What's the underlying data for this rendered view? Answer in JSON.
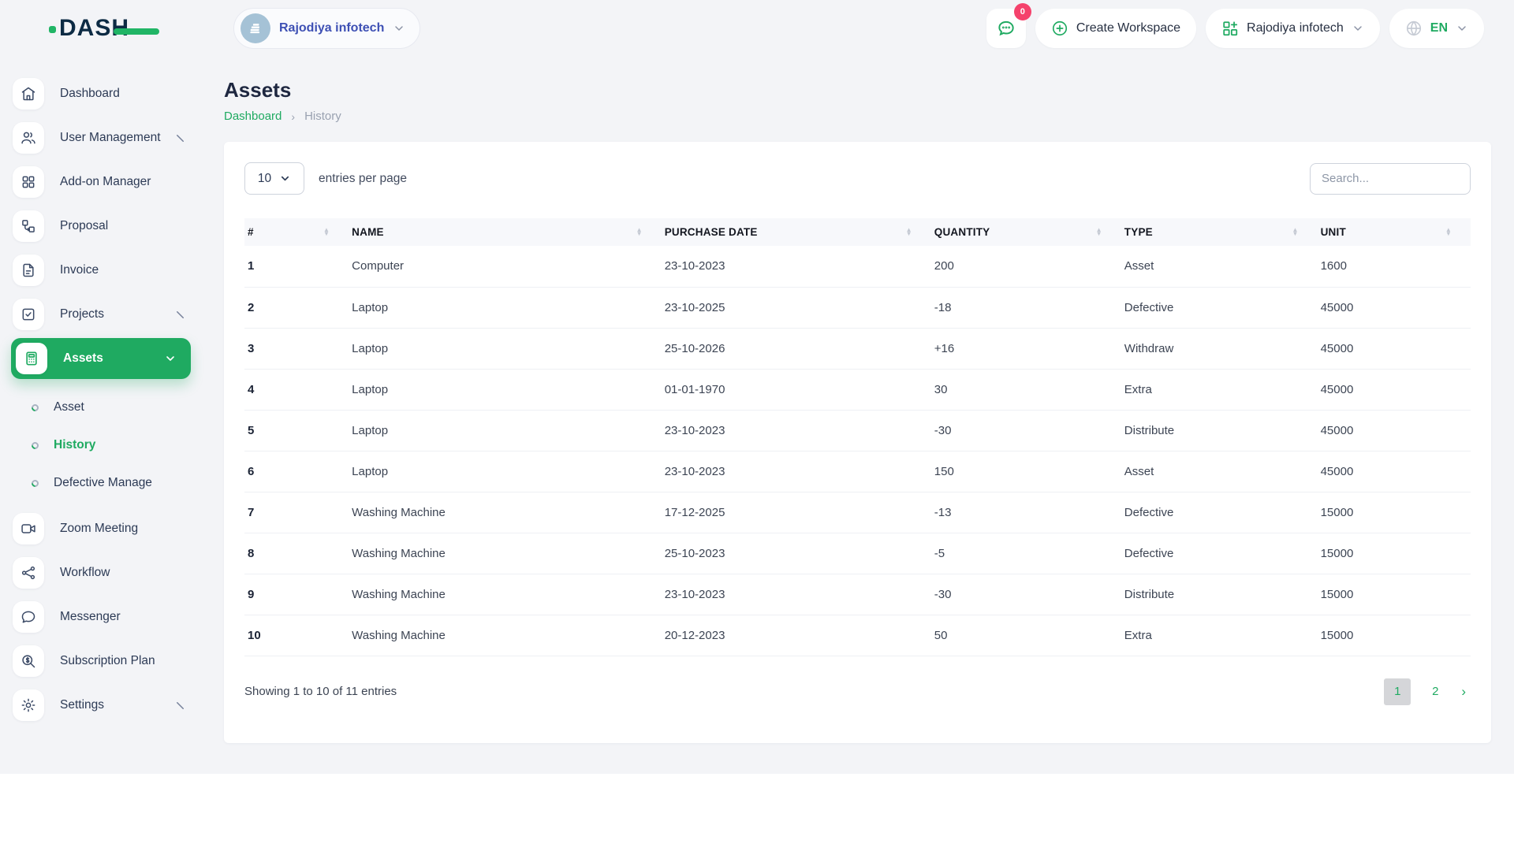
{
  "brand": {
    "logo_text": "DASH"
  },
  "topbar": {
    "workspace_switcher": {
      "label": "Rajodiya infotech"
    },
    "messages_button": {
      "badge": "0"
    },
    "create_workspace": {
      "label": "Create Workspace"
    },
    "workspace_menu": {
      "label": "Rajodiya infotech"
    },
    "language": {
      "label": "EN"
    }
  },
  "sidebar": {
    "items": [
      {
        "label": "Dashboard",
        "icon": "home-icon"
      },
      {
        "label": "User Management",
        "icon": "users-icon",
        "chevron": "right"
      },
      {
        "label": "Add-on Manager",
        "icon": "grid-icon"
      },
      {
        "label": "Proposal",
        "icon": "proposal-icon"
      },
      {
        "label": "Invoice",
        "icon": "invoice-icon"
      },
      {
        "label": "Projects",
        "icon": "projects-icon",
        "chevron": "right"
      },
      {
        "label": "Assets",
        "icon": "assets-icon",
        "chevron": "down",
        "active": true,
        "children": [
          {
            "label": "Asset"
          },
          {
            "label": "History",
            "active": true
          },
          {
            "label": "Defective Manage"
          }
        ]
      },
      {
        "label": "Zoom Meeting",
        "icon": "video-icon"
      },
      {
        "label": "Workflow",
        "icon": "workflow-icon"
      },
      {
        "label": "Messenger",
        "icon": "messenger-icon"
      },
      {
        "label": "Subscription Plan",
        "icon": "subscription-icon"
      },
      {
        "label": "Settings",
        "icon": "settings-icon",
        "chevron": "right"
      }
    ]
  },
  "page": {
    "title": "Assets",
    "breadcrumb": [
      "Dashboard",
      "History"
    ]
  },
  "table_card": {
    "entries_select": "10",
    "entries_label": "entries per page",
    "search_placeholder": "Search...",
    "columns": [
      "#",
      "NAME",
      "PURCHASE DATE",
      "QUANTITY",
      "TYPE",
      "UNIT"
    ],
    "rows": [
      {
        "num": "1",
        "name": "Computer",
        "date": "23-10-2023",
        "qty": "200",
        "type": "Asset",
        "unit": "1600"
      },
      {
        "num": "2",
        "name": "Laptop",
        "date": "23-10-2025",
        "qty": "-18",
        "type": "Defective",
        "unit": "45000"
      },
      {
        "num": "3",
        "name": "Laptop",
        "date": "25-10-2026",
        "qty": "+16",
        "type": "Withdraw",
        "unit": "45000"
      },
      {
        "num": "4",
        "name": "Laptop",
        "date": "01-01-1970",
        "qty": "30",
        "type": "Extra",
        "unit": "45000"
      },
      {
        "num": "5",
        "name": "Laptop",
        "date": "23-10-2023",
        "qty": "-30",
        "type": "Distribute",
        "unit": "45000"
      },
      {
        "num": "6",
        "name": "Laptop",
        "date": "23-10-2023",
        "qty": "150",
        "type": "Asset",
        "unit": "45000"
      },
      {
        "num": "7",
        "name": "Washing Machine",
        "date": "17-12-2025",
        "qty": "-13",
        "type": "Defective",
        "unit": "15000"
      },
      {
        "num": "8",
        "name": "Washing Machine",
        "date": "25-10-2023",
        "qty": "-5",
        "type": "Defective",
        "unit": "15000"
      },
      {
        "num": "9",
        "name": "Washing Machine",
        "date": "23-10-2023",
        "qty": "-30",
        "type": "Distribute",
        "unit": "15000"
      },
      {
        "num": "10",
        "name": "Washing Machine",
        "date": "20-12-2023",
        "qty": "50",
        "type": "Extra",
        "unit": "15000"
      }
    ],
    "footer": {
      "summary": "Showing 1 to 10 of 11 entries",
      "pages": [
        "1",
        "2"
      ],
      "active_page": "1",
      "next_symbol": "›"
    }
  },
  "colors": {
    "accent_green": "#1faa61",
    "badge_pink": "#f5426c",
    "workspace_text_blue": "#3e50b4",
    "page_background": "#f3f4f7",
    "active_page_bg": "#d5d6d9",
    "dark_navy": "#1e2740"
  }
}
